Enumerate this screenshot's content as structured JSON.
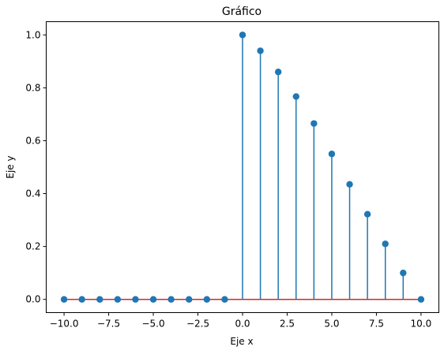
{
  "chart_data": {
    "type": "stem",
    "title": "Gráfico",
    "xlabel": "Eje x",
    "ylabel": "Eje y",
    "xlim": [
      -11,
      11
    ],
    "ylim": [
      -0.05,
      1.05
    ],
    "xticks": [
      -10.0,
      -7.5,
      -5.0,
      -2.5,
      0.0,
      2.5,
      5.0,
      7.5,
      10.0
    ],
    "xtick_labels": [
      "−10.0",
      "−7.5",
      "−5.0",
      "−2.5",
      "0.0",
      "2.5",
      "5.0",
      "7.5",
      "10.0"
    ],
    "yticks": [
      0.0,
      0.2,
      0.4,
      0.6,
      0.8,
      1.0
    ],
    "ytick_labels": [
      "0.0",
      "0.2",
      "0.4",
      "0.6",
      "0.8",
      "1.0"
    ],
    "grid": false,
    "baseline": 0,
    "x": [
      -10,
      -9,
      -8,
      -7,
      -6,
      -5,
      -4,
      -3,
      -2,
      -1,
      0,
      1,
      2,
      3,
      4,
      5,
      6,
      7,
      8,
      9,
      10
    ],
    "y": [
      0,
      0,
      0,
      0,
      0,
      0,
      0,
      0,
      0,
      0,
      1.0,
      0.94,
      0.86,
      0.767,
      0.665,
      0.55,
      0.435,
      0.322,
      0.21,
      0.1,
      0
    ]
  },
  "colors": {
    "stem": "#1f77b4",
    "marker": "#1f77b4",
    "baseline": "#d62728",
    "axes": "#000000"
  }
}
